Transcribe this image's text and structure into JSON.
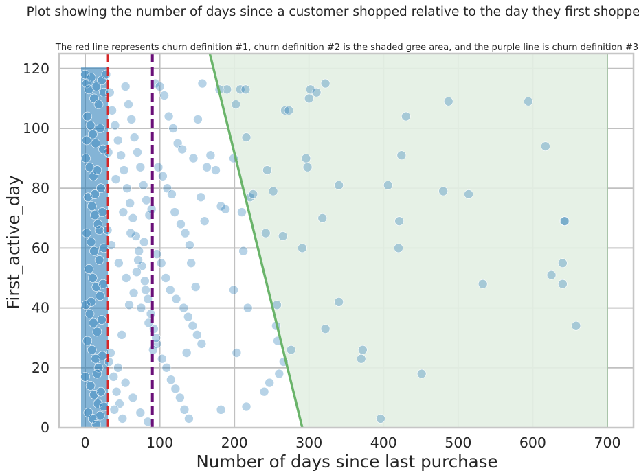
{
  "chart_data": {
    "type": "scatter",
    "suptitle": "Plot showing the number of days since a customer shopped relative to the day they first shopped",
    "title": "The red line represents churn definition #1, churn definition #2 is the shaded gree area, and the purple line is churn definition #3",
    "xlabel": "Number of days since last purchase",
    "ylabel": "First_active_day",
    "xlim": [
      -35,
      735
    ],
    "ylim": [
      0,
      125
    ],
    "xticks": [
      0,
      100,
      200,
      300,
      400,
      500,
      600,
      700
    ],
    "yticks": [
      0,
      20,
      40,
      60,
      80,
      100,
      120
    ],
    "grid": true,
    "colors": {
      "points": "#1f77b4",
      "churn_def_1": "#d62728",
      "churn_def_2_fill": "#e3f0e3",
      "churn_def_2_line": "#6ab46a",
      "churn_def_3": "#6a0f78",
      "grid": "#c0c0c0",
      "spine": "#c6c6c6"
    },
    "churn_definition_1": {
      "type": "vertical-dashed-line",
      "x": 30
    },
    "churn_definition_3": {
      "type": "vertical-dashed-line",
      "x": 90
    },
    "churn_definition_2": {
      "type": "shaded-area",
      "line_points": [
        [
          167,
          125
        ],
        [
          291,
          0
        ]
      ],
      "right_x": 700
    },
    "dense_cluster": {
      "x_range": [
        0,
        25
      ],
      "y_range": [
        0,
        119
      ]
    },
    "points": [
      [
        0,
        118
      ],
      [
        2,
        115
      ],
      [
        5,
        113
      ],
      [
        8,
        117
      ],
      [
        12,
        110
      ],
      [
        15,
        114
      ],
      [
        18,
        108
      ],
      [
        22,
        116
      ],
      [
        25,
        112
      ],
      [
        3,
        104
      ],
      [
        7,
        101
      ],
      [
        10,
        98
      ],
      [
        14,
        95
      ],
      [
        20,
        100
      ],
      [
        24,
        93
      ],
      [
        1,
        90
      ],
      [
        6,
        87
      ],
      [
        11,
        84
      ],
      [
        16,
        86
      ],
      [
        21,
        80
      ],
      [
        4,
        77
      ],
      [
        9,
        74
      ],
      [
        13,
        71
      ],
      [
        17,
        68
      ],
      [
        23,
        72
      ],
      [
        2,
        65
      ],
      [
        8,
        62
      ],
      [
        12,
        59
      ],
      [
        19,
        56
      ],
      [
        25,
        60
      ],
      [
        5,
        53
      ],
      [
        10,
        50
      ],
      [
        15,
        47
      ],
      [
        20,
        44
      ],
      [
        24,
        48
      ],
      [
        1,
        41
      ],
      [
        6,
        38
      ],
      [
        11,
        35
      ],
      [
        16,
        32
      ],
      [
        22,
        36
      ],
      [
        3,
        29
      ],
      [
        9,
        26
      ],
      [
        14,
        23
      ],
      [
        18,
        20
      ],
      [
        23,
        24
      ],
      [
        0,
        17
      ],
      [
        7,
        14
      ],
      [
        12,
        11
      ],
      [
        17,
        8
      ],
      [
        21,
        12
      ],
      [
        4,
        5
      ],
      [
        10,
        3
      ],
      [
        15,
        1
      ],
      [
        20,
        4
      ],
      [
        25,
        7
      ],
      [
        2,
        96
      ],
      [
        13,
        78
      ],
      [
        19,
        66
      ],
      [
        8,
        42
      ],
      [
        16,
        18
      ],
      [
        28,
        118
      ],
      [
        33,
        112
      ],
      [
        36,
        106
      ],
      [
        40,
        101
      ],
      [
        44,
        96
      ],
      [
        48,
        91
      ],
      [
        52,
        86
      ],
      [
        56,
        80
      ],
      [
        60,
        75
      ],
      [
        64,
        70
      ],
      [
        68,
        64
      ],
      [
        72,
        59
      ],
      [
        76,
        54
      ],
      [
        80,
        49
      ],
      [
        84,
        43
      ],
      [
        88,
        38
      ],
      [
        92,
        33
      ],
      [
        96,
        28
      ],
      [
        32,
        22
      ],
      [
        38,
        17
      ],
      [
        42,
        12
      ],
      [
        46,
        8
      ],
      [
        50,
        3
      ],
      [
        54,
        114
      ],
      [
        58,
        108
      ],
      [
        62,
        103
      ],
      [
        66,
        97
      ],
      [
        70,
        92
      ],
      [
        74,
        87
      ],
      [
        78,
        81
      ],
      [
        82,
        76
      ],
      [
        86,
        71
      ],
      [
        30,
        66
      ],
      [
        35,
        61
      ],
      [
        45,
        55
      ],
      [
        55,
        50
      ],
      [
        65,
        45
      ],
      [
        75,
        40
      ],
      [
        85,
        35
      ],
      [
        95,
        30
      ],
      [
        34,
        25
      ],
      [
        44,
        20
      ],
      [
        54,
        15
      ],
      [
        64,
        10
      ],
      [
        74,
        5
      ],
      [
        84,
        2
      ],
      [
        94,
        115
      ],
      [
        31,
        92
      ],
      [
        41,
        83
      ],
      [
        51,
        72
      ],
      [
        61,
        65
      ],
      [
        71,
        56
      ],
      [
        81,
        46
      ],
      [
        91,
        26
      ],
      [
        39,
        6
      ],
      [
        49,
        31
      ],
      [
        59,
        41
      ],
      [
        69,
        52
      ],
      [
        79,
        62
      ],
      [
        89,
        73
      ],
      [
        100,
        114
      ],
      [
        106,
        111
      ],
      [
        112,
        104
      ],
      [
        118,
        100
      ],
      [
        124,
        95
      ],
      [
        130,
        93
      ],
      [
        98,
        87
      ],
      [
        104,
        84
      ],
      [
        110,
        80
      ],
      [
        116,
        78
      ],
      [
        120,
        72
      ],
      [
        128,
        68
      ],
      [
        134,
        65
      ],
      [
        140,
        61
      ],
      [
        96,
        58
      ],
      [
        102,
        55
      ],
      [
        108,
        50
      ],
      [
        114,
        46
      ],
      [
        122,
        43
      ],
      [
        132,
        40
      ],
      [
        138,
        37
      ],
      [
        144,
        34
      ],
      [
        150,
        31
      ],
      [
        156,
        28
      ],
      [
        103,
        23
      ],
      [
        109,
        20
      ],
      [
        115,
        16
      ],
      [
        121,
        13
      ],
      [
        127,
        10
      ],
      [
        133,
        6
      ],
      [
        139,
        3
      ],
      [
        145,
        90
      ],
      [
        151,
        103
      ],
      [
        157,
        115
      ],
      [
        163,
        87
      ],
      [
        160,
        69
      ],
      [
        155,
        77
      ],
      [
        148,
        47
      ],
      [
        142,
        55
      ],
      [
        136,
        25
      ],
      [
        168,
        91
      ],
      [
        175,
        86
      ],
      [
        182,
        74
      ],
      [
        188,
        73
      ],
      [
        199,
        90
      ],
      [
        199,
        46
      ],
      [
        203,
        25
      ],
      [
        182,
        6
      ],
      [
        210,
        72
      ],
      [
        216,
        97
      ],
      [
        218,
        40
      ],
      [
        221,
        77
      ],
      [
        225,
        78
      ],
      [
        212,
        59
      ],
      [
        240,
        12
      ],
      [
        247,
        15
      ],
      [
        216,
        7
      ],
      [
        260,
        18
      ],
      [
        257,
        41
      ],
      [
        256,
        34
      ],
      [
        258,
        29
      ],
      [
        242,
        65
      ],
      [
        252,
        79
      ],
      [
        244,
        86
      ],
      [
        265,
        64
      ],
      [
        268,
        106
      ],
      [
        273,
        106
      ],
      [
        208,
        113
      ],
      [
        215,
        113
      ],
      [
        202,
        108
      ],
      [
        190,
        113
      ],
      [
        180,
        113
      ],
      [
        296,
        90
      ],
      [
        298,
        87
      ],
      [
        291,
        60
      ],
      [
        302,
        113
      ],
      [
        300,
        110
      ],
      [
        310,
        112
      ],
      [
        322,
        115
      ],
      [
        318,
        70
      ],
      [
        322,
        33
      ],
      [
        340,
        42
      ],
      [
        340,
        81
      ],
      [
        370,
        23
      ],
      [
        372,
        26
      ],
      [
        396,
        3
      ],
      [
        406,
        81
      ],
      [
        420,
        60
      ],
      [
        421,
        69
      ],
      [
        424,
        91
      ],
      [
        430,
        104
      ],
      [
        451,
        18
      ],
      [
        480,
        79
      ],
      [
        487,
        109
      ],
      [
        514,
        78
      ],
      [
        533,
        48
      ],
      [
        594,
        109
      ],
      [
        617,
        94
      ],
      [
        625,
        51
      ],
      [
        640,
        55
      ],
      [
        640,
        48
      ],
      [
        642,
        69
      ],
      [
        643,
        69
      ],
      [
        658,
        34
      ],
      [
        276,
        26
      ],
      [
        266,
        22
      ]
    ]
  }
}
